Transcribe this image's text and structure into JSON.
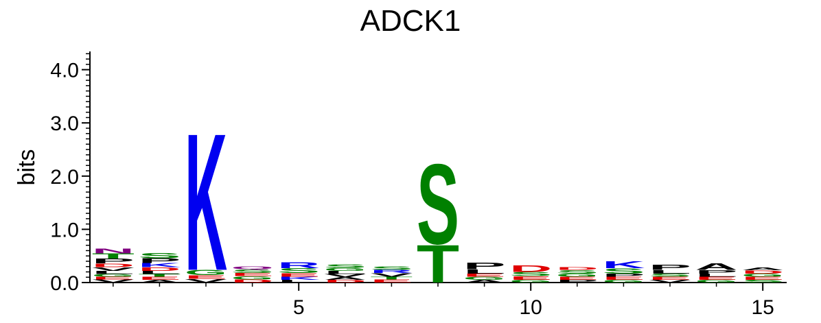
{
  "chart_data": {
    "type": "sequence-logo",
    "title": "ADCK1",
    "ylabel": "bits",
    "ylim": [
      0,
      4.3
    ],
    "y_ticks": [
      "0.0",
      "1.0",
      "2.0",
      "3.0",
      "4.0"
    ],
    "y_tick_values": [
      0,
      1,
      2,
      3,
      4
    ],
    "x_ticks": [
      "5",
      "10",
      "15"
    ],
    "x_tick_values": [
      5,
      10,
      15
    ],
    "positions": [
      1,
      2,
      3,
      4,
      5,
      6,
      7,
      8,
      9,
      10,
      11,
      12,
      13,
      14,
      15
    ],
    "colors": {
      "acidic": "#e00000",
      "basic": "#0000f0",
      "polar": "#008000",
      "hydrophobic": "#000000",
      "amide": "#800080"
    },
    "columns": [
      [
        {
          "aa": "V",
          "h": 0.06
        },
        {
          "aa": "E",
          "h": 0.05
        },
        {
          "aa": "G",
          "h": 0.05
        },
        {
          "aa": "L",
          "h": 0.06
        },
        {
          "aa": "V",
          "h": 0.07
        },
        {
          "aa": "D",
          "h": 0.07
        },
        {
          "aa": "P",
          "h": 0.09
        },
        {
          "aa": "T",
          "h": 0.1
        },
        {
          "aa": "N",
          "h": 0.09
        }
      ],
      [
        {
          "aa": "A",
          "h": 0.05
        },
        {
          "aa": "E",
          "h": 0.06
        },
        {
          "aa": "T",
          "h": 0.05
        },
        {
          "aa": "L",
          "h": 0.06
        },
        {
          "aa": "D",
          "h": 0.07
        },
        {
          "aa": "K",
          "h": 0.08
        },
        {
          "aa": "P",
          "h": 0.09
        },
        {
          "aa": "S",
          "h": 0.1
        }
      ],
      [
        {
          "aa": "V",
          "h": 0.07
        },
        {
          "aa": "E",
          "h": 0.07
        },
        {
          "aa": "G",
          "h": 0.1
        },
        {
          "aa": "K",
          "h": 2.65
        }
      ],
      [
        {
          "aa": "D",
          "h": 0.06
        },
        {
          "aa": "G",
          "h": 0.06
        },
        {
          "aa": "E",
          "h": 0.06
        },
        {
          "aa": "S",
          "h": 0.07
        },
        {
          "aa": "Q",
          "h": 0.05
        }
      ],
      [
        {
          "aa": "L",
          "h": 0.05
        },
        {
          "aa": "K",
          "h": 0.06
        },
        {
          "aa": "E",
          "h": 0.07
        },
        {
          "aa": "S",
          "h": 0.09
        },
        {
          "aa": "R",
          "h": 0.11
        }
      ],
      [
        {
          "aa": "D",
          "h": 0.05
        },
        {
          "aa": "A",
          "h": 0.05
        },
        {
          "aa": "V",
          "h": 0.06
        },
        {
          "aa": "L",
          "h": 0.06
        },
        {
          "aa": "G",
          "h": 0.06
        },
        {
          "aa": "S",
          "h": 0.07
        }
      ],
      [
        {
          "aa": "E",
          "h": 0.06
        },
        {
          "aa": "T",
          "h": 0.05
        },
        {
          "aa": "V",
          "h": 0.07
        },
        {
          "aa": "R",
          "h": 0.06
        },
        {
          "aa": "S",
          "h": 0.07
        }
      ],
      [
        {
          "aa": "T",
          "h": 0.73
        },
        {
          "aa": "S",
          "h": 1.55
        }
      ],
      [
        {
          "aa": "A",
          "h": 0.05
        },
        {
          "aa": "G",
          "h": 0.06
        },
        {
          "aa": "E",
          "h": 0.06
        },
        {
          "aa": "L",
          "h": 0.08
        },
        {
          "aa": "P",
          "h": 0.13
        }
      ],
      [
        {
          "aa": "G",
          "h": 0.05
        },
        {
          "aa": "E",
          "h": 0.07
        },
        {
          "aa": "S",
          "h": 0.08
        },
        {
          "aa": "D",
          "h": 0.13
        }
      ],
      [
        {
          "aa": "P",
          "h": 0.05
        },
        {
          "aa": "E",
          "h": 0.06
        },
        {
          "aa": "G",
          "h": 0.06
        },
        {
          "aa": "S",
          "h": 0.07
        },
        {
          "aa": "D",
          "h": 0.05
        }
      ],
      [
        {
          "aa": "G",
          "h": 0.05
        },
        {
          "aa": "E",
          "h": 0.06
        },
        {
          "aa": "P",
          "h": 0.06
        },
        {
          "aa": "S",
          "h": 0.1
        },
        {
          "aa": "K",
          "h": 0.14
        }
      ],
      [
        {
          "aa": "V",
          "h": 0.05
        },
        {
          "aa": "E",
          "h": 0.06
        },
        {
          "aa": "S",
          "h": 0.06
        },
        {
          "aa": "L",
          "h": 0.07
        },
        {
          "aa": "P",
          "h": 0.1
        }
      ],
      [
        {
          "aa": "G",
          "h": 0.05
        },
        {
          "aa": "E",
          "h": 0.06
        },
        {
          "aa": "L",
          "h": 0.06
        },
        {
          "aa": "P",
          "h": 0.07
        },
        {
          "aa": "A",
          "h": 0.13
        }
      ],
      [
        {
          "aa": "S",
          "h": 0.05
        },
        {
          "aa": "E",
          "h": 0.06
        },
        {
          "aa": "G",
          "h": 0.06
        },
        {
          "aa": "D",
          "h": 0.06
        },
        {
          "aa": "A",
          "h": 0.05
        }
      ]
    ]
  }
}
